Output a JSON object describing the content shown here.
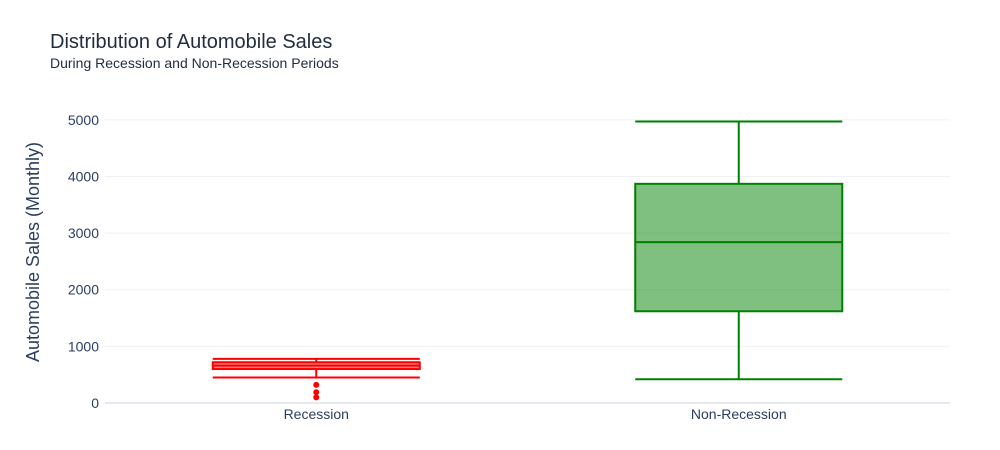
{
  "chart_data": {
    "type": "box",
    "title": "Distribution of Automobile Sales",
    "subtitle": "During Recession and Non-Recession Periods",
    "xlabel": "",
    "ylabel": "Automobile Sales (Monthly)",
    "ylim": [
      -35,
      5350
    ],
    "yticks": [
      0,
      1000,
      2000,
      3000,
      4000,
      5000
    ],
    "grid": true,
    "categories": [
      "Recession",
      "Non-Recession"
    ],
    "boxes": [
      {
        "category": "Recession",
        "color": "#ff0000",
        "fill": "rgba(255,0,0,0.5)",
        "min": 450,
        "q1": 600,
        "median": 660,
        "q3": 720,
        "max": 780,
        "outliers": [
          100,
          190,
          320
        ]
      },
      {
        "category": "Non-Recession",
        "color": "#008000",
        "fill": "rgba(0,128,0,0.5)",
        "min": 420,
        "q1": 1620,
        "median": 2840,
        "q3": 3870,
        "max": 4970,
        "outliers": []
      }
    ]
  }
}
